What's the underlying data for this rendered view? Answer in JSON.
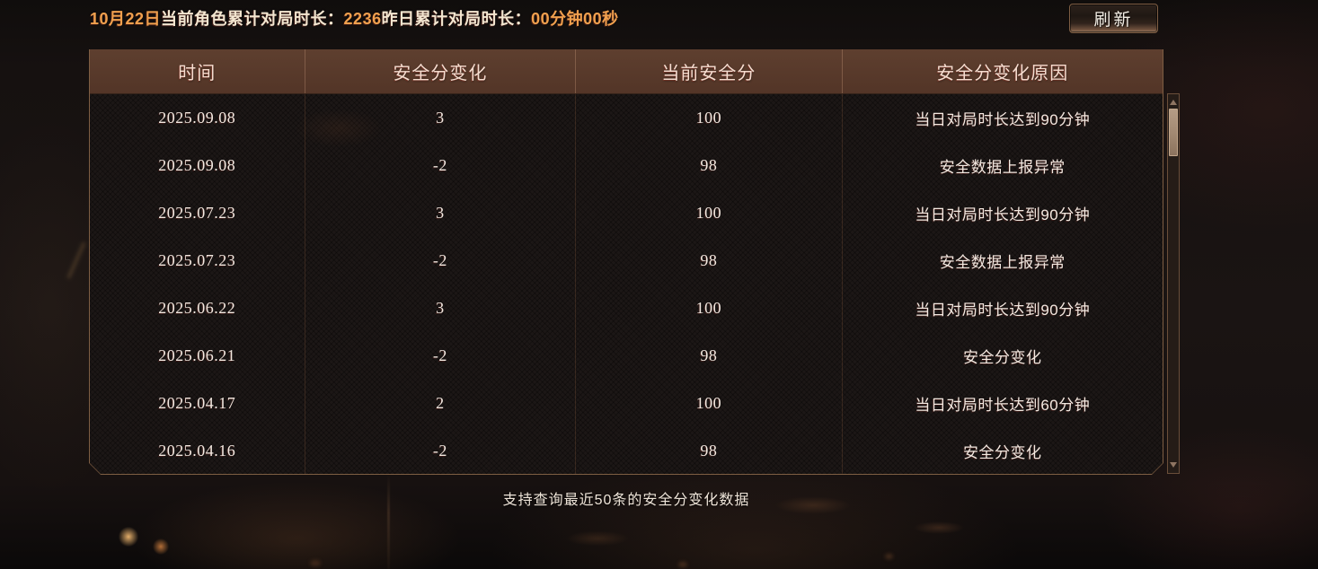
{
  "top_bar": {
    "date_label": "10月22日",
    "total_label": "当前角色累计对局时长：",
    "total_value": "2236",
    "yesterday_label": "昨日累计对局时长：",
    "yesterday_value": "00分钟00秒",
    "refresh_label": "刷新"
  },
  "table": {
    "headers": [
      "时间",
      "安全分变化",
      "当前安全分",
      "安全分变化原因"
    ],
    "rows": [
      [
        "2025.09.08",
        "3",
        "100",
        "当日对局时长达到90分钟"
      ],
      [
        "2025.09.08",
        "-2",
        "98",
        "安全数据上报异常"
      ],
      [
        "2025.07.23",
        "3",
        "100",
        "当日对局时长达到90分钟"
      ],
      [
        "2025.07.23",
        "-2",
        "98",
        "安全数据上报异常"
      ],
      [
        "2025.06.22",
        "3",
        "100",
        "当日对局时长达到90分钟"
      ],
      [
        "2025.06.21",
        "-2",
        "98",
        "安全分变化"
      ],
      [
        "2025.04.17",
        "2",
        "100",
        "当日对局时长达到60分钟"
      ],
      [
        "2025.04.16",
        "-2",
        "98",
        "安全分变化"
      ]
    ]
  },
  "footer": {
    "note": "支持查询最近50条的安全分变化数据"
  },
  "colors": {
    "accent_orange": "#f0a04e",
    "cream_text": "#f3e6d0",
    "header_brown": "#5a3b2c",
    "panel_border": "#7e5e43"
  }
}
